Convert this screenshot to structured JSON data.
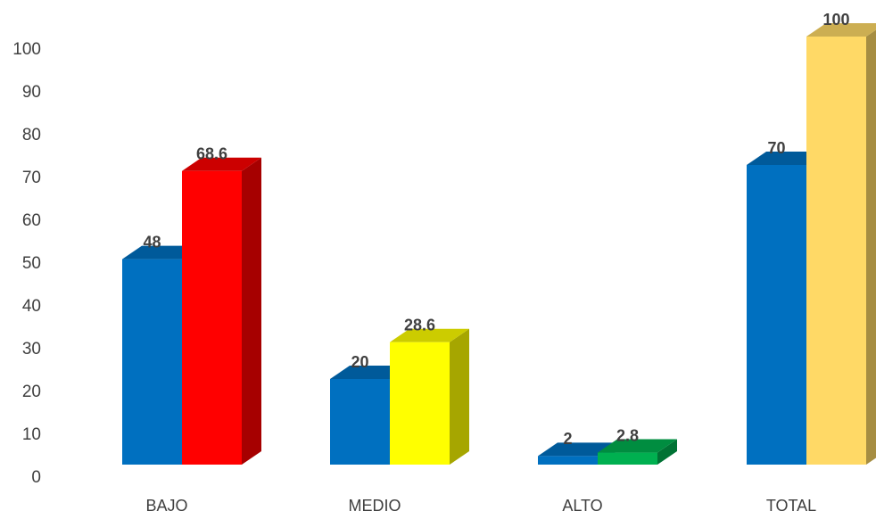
{
  "chart_data": {
    "type": "bar3d",
    "categories": [
      "BAJO",
      "MEDIO",
      "ALTO",
      "TOTAL"
    ],
    "series": [
      {
        "color": "#0070c0",
        "values": [
          48,
          20,
          2,
          70
        ]
      },
      {
        "colors": [
          "#ff0000",
          "#ffff00",
          "#00b050",
          "#ffd966"
        ],
        "values": [
          68.6,
          28.6,
          2.8,
          100
        ]
      }
    ],
    "ylim": [
      0,
      100
    ],
    "yticks": [
      0,
      10,
      20,
      30,
      40,
      50,
      60,
      70,
      80,
      90,
      100
    ],
    "grid": false
  }
}
